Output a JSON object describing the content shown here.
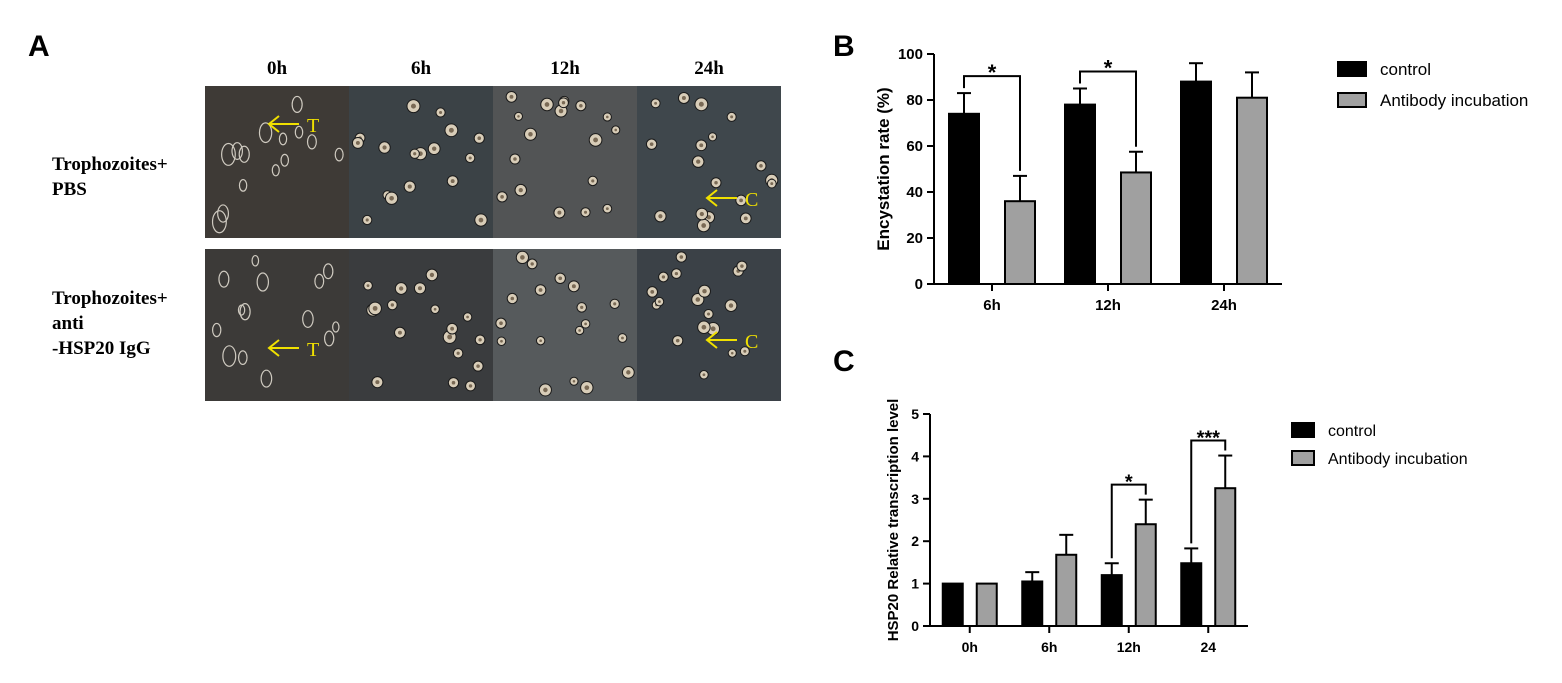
{
  "panels": {
    "A": "A",
    "B": "B",
    "C": "C"
  },
  "micrographs": {
    "time_labels": [
      "0h",
      "6h",
      "12h",
      "24h"
    ],
    "rows": [
      {
        "label": "Trophozoites+\nPBS",
        "annotations": [
          {
            "col": 0,
            "text": "T"
          },
          {
            "col": 3,
            "text": "C"
          }
        ]
      },
      {
        "label": "Trophozoites+\nanti\n-HSP20 IgG",
        "annotations": [
          {
            "col": 0,
            "text": "T"
          },
          {
            "col": 3,
            "text": "C"
          }
        ]
      }
    ],
    "colors": {
      "tiles": [
        [
          "#3e3a36",
          "#3b4246",
          "#525455",
          "#3f474c"
        ],
        [
          "#3c3a38",
          "#3a3c3e",
          "#565a5c",
          "#3b4147"
        ]
      ],
      "arrow": "#f0e000"
    }
  },
  "chart_data": [
    {
      "type": "bar",
      "panel": "B",
      "title": "",
      "xlabel": "",
      "ylabel": "Encystation rate (%)",
      "ylim": [
        0,
        100
      ],
      "yticks": [
        0,
        20,
        40,
        60,
        80,
        100
      ],
      "categories": [
        "6h",
        "12h",
        "24h"
      ],
      "series": [
        {
          "name": "control",
          "color": "#000000",
          "values": [
            74,
            78,
            88
          ],
          "errors": [
            9,
            7,
            8
          ]
        },
        {
          "name": "Antibody incubation",
          "color": "#a0a0a0",
          "values": [
            36,
            48.5,
            81
          ],
          "errors": [
            11,
            9,
            11
          ]
        }
      ],
      "significance": [
        {
          "category": "6h",
          "label": "*"
        },
        {
          "category": "12h",
          "label": "*"
        }
      ],
      "legend": "right",
      "grid": false
    },
    {
      "type": "bar",
      "panel": "C",
      "title": "",
      "xlabel": "",
      "ylabel": "HSP20 Relative transcription level",
      "ylim": [
        0,
        5
      ],
      "yticks": [
        0,
        1,
        2,
        3,
        4,
        5
      ],
      "categories": [
        "0h",
        "6h",
        "12h",
        "24"
      ],
      "series": [
        {
          "name": "control",
          "color": "#000000",
          "values": [
            1,
            1.05,
            1.2,
            1.48
          ],
          "errors": [
            0,
            0.22,
            0.28,
            0.35
          ]
        },
        {
          "name": "Antibody incubation",
          "color": "#a0a0a0",
          "values": [
            1,
            1.68,
            2.4,
            3.25
          ],
          "errors": [
            0,
            0.47,
            0.58,
            0.77
          ]
        }
      ],
      "significance": [
        {
          "category": "12h",
          "label": "*"
        },
        {
          "category": "24",
          "label": "***"
        }
      ],
      "legend": "right",
      "grid": false
    }
  ]
}
